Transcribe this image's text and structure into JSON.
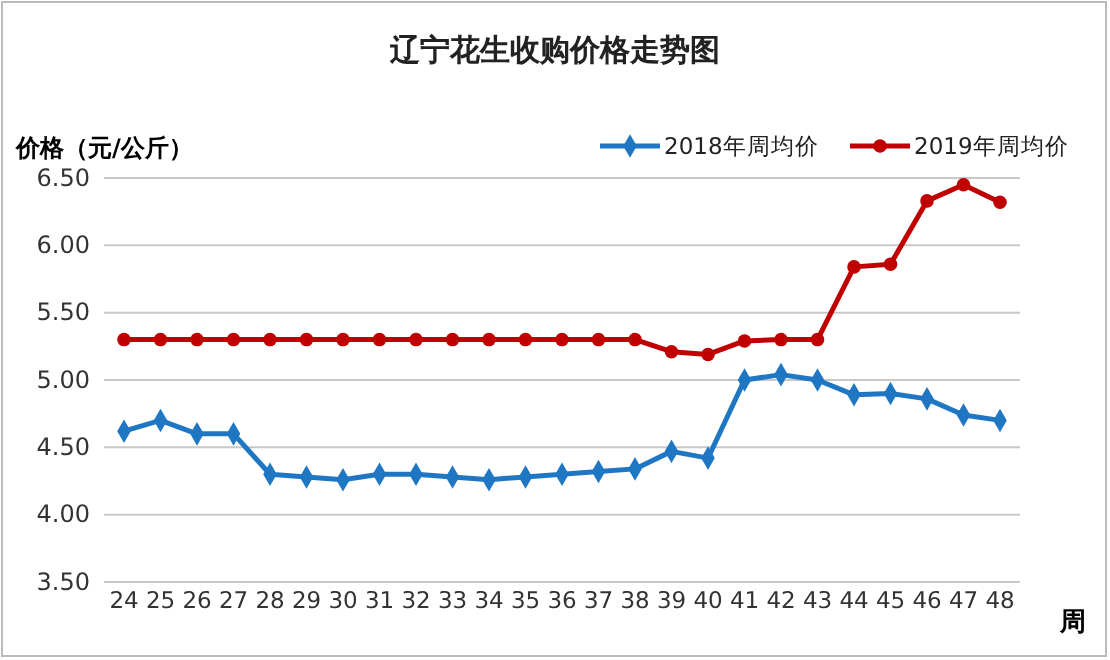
{
  "chart_data": {
    "type": "line",
    "title": "辽宁花生收购价格走势图",
    "ylabel": "价格（元/公斤）",
    "xlabel": "周",
    "categories": [
      "24",
      "25",
      "26",
      "27",
      "28",
      "29",
      "30",
      "31",
      "32",
      "33",
      "34",
      "35",
      "36",
      "37",
      "38",
      "39",
      "40",
      "41",
      "42",
      "43",
      "44",
      "45",
      "46",
      "47",
      "48"
    ],
    "series": [
      {
        "name": "2018年周均价",
        "color": "#1f77c4",
        "marker": "diamond",
        "values": [
          4.62,
          4.7,
          4.6,
          4.6,
          4.3,
          4.28,
          4.26,
          4.3,
          4.3,
          4.28,
          4.26,
          4.28,
          4.3,
          4.32,
          4.34,
          4.47,
          4.42,
          5.0,
          5.04,
          5.0,
          4.89,
          4.9,
          4.86,
          4.74,
          4.7
        ]
      },
      {
        "name": "2019年周均价",
        "color": "#c00000",
        "marker": "circle",
        "values": [
          5.3,
          5.3,
          5.3,
          5.3,
          5.3,
          5.3,
          5.3,
          5.3,
          5.3,
          5.3,
          5.3,
          5.3,
          5.3,
          5.3,
          5.3,
          5.21,
          5.19,
          5.29,
          5.3,
          5.3,
          5.84,
          5.86,
          6.33,
          6.45,
          6.32
        ]
      }
    ],
    "ylim": [
      3.5,
      6.5
    ],
    "yticks": [
      {
        "value": 3.5,
        "label": "3.50"
      },
      {
        "value": 4,
        "label": "4.00"
      },
      {
        "value": 4.5,
        "label": "4.50"
      },
      {
        "value": 5,
        "label": "5.00"
      },
      {
        "value": 5.5,
        "label": "5.50"
      },
      {
        "value": 6,
        "label": "6.00"
      },
      {
        "value": 6.5,
        "label": "6.50"
      }
    ],
    "grid": "y",
    "legend": "top right"
  }
}
